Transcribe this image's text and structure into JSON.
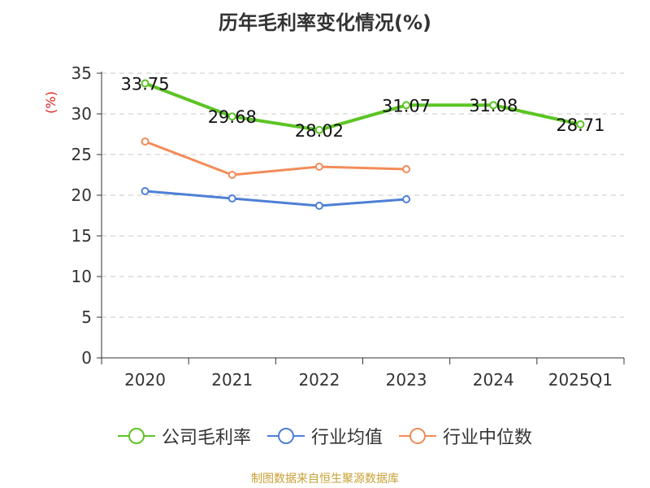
{
  "title": "历年毛利率变化情况(%)",
  "footer": "制图数据来自恒生聚源数据库",
  "chart_data": {
    "type": "line",
    "title": "历年毛利率变化情况(%)",
    "ylabel": "(%)",
    "xlabel": "",
    "ylim": [
      0,
      35
    ],
    "y_ticks": [
      0,
      5,
      10,
      15,
      20,
      25,
      30,
      35
    ],
    "grid": true,
    "legend_position": "bottom",
    "categories": [
      "2020",
      "2021",
      "2022",
      "2023",
      "2024",
      "2025Q1"
    ],
    "series": [
      {
        "name": "公司毛利率",
        "color": "#5cc423",
        "values": [
          33.75,
          29.68,
          28.02,
          31.07,
          31.08,
          28.71
        ],
        "labels": [
          "33.75",
          "29.68",
          "28.02",
          "31.07",
          "31.08",
          "28.71"
        ]
      },
      {
        "name": "行业均值",
        "color": "#4e7fd6",
        "values": [
          20.5,
          19.6,
          18.7,
          19.5,
          null,
          null
        ]
      },
      {
        "name": "行业中位数",
        "color": "#f28c5a",
        "values": [
          26.6,
          22.5,
          23.5,
          23.2,
          null,
          null
        ]
      }
    ]
  }
}
